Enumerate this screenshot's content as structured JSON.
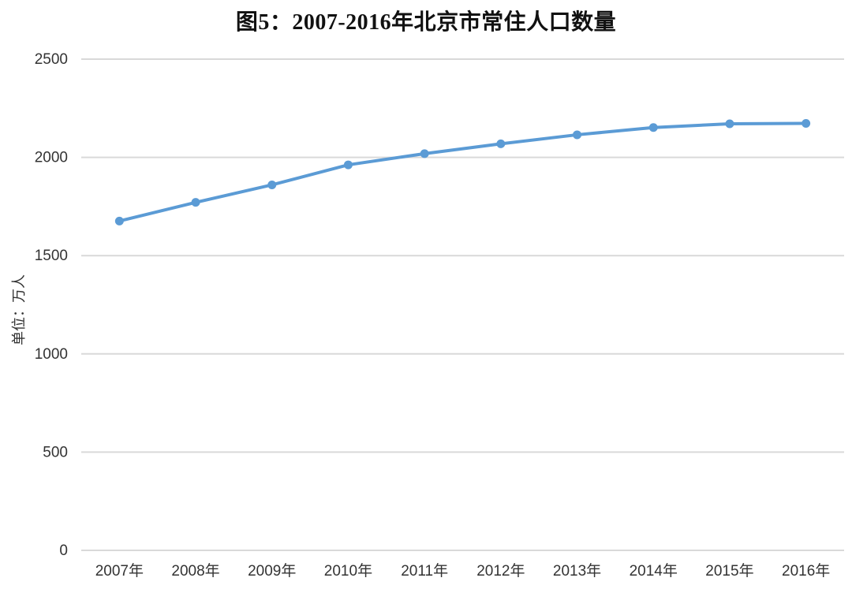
{
  "chart_data": {
    "type": "line",
    "title": "图5：2007-2016年北京市常住人口数量",
    "categories": [
      "2007年",
      "2008年",
      "2009年",
      "2010年",
      "2011年",
      "2012年",
      "2013年",
      "2014年",
      "2015年",
      "2016年"
    ],
    "series": [
      {
        "values": [
          1676,
          1771,
          1860,
          1962,
          2019,
          2069,
          2115,
          2152,
          2171,
          2173
        ]
      }
    ],
    "xlabel": "",
    "ylabel": "单位：万人",
    "ylim": [
      0,
      2500
    ],
    "ytick_step": 500,
    "ytick_labels": [
      "0",
      "500",
      "1000",
      "1500",
      "2000",
      "2500"
    ],
    "grid": true,
    "legend": "none",
    "colors": {
      "line": "#5b9bd5",
      "marker": "#5b9bd5",
      "gridline": "#d9d9d9",
      "tick_text": "#333333",
      "axis_title_text": "#333333",
      "title_text": "#111111",
      "background": "#ffffff"
    }
  }
}
